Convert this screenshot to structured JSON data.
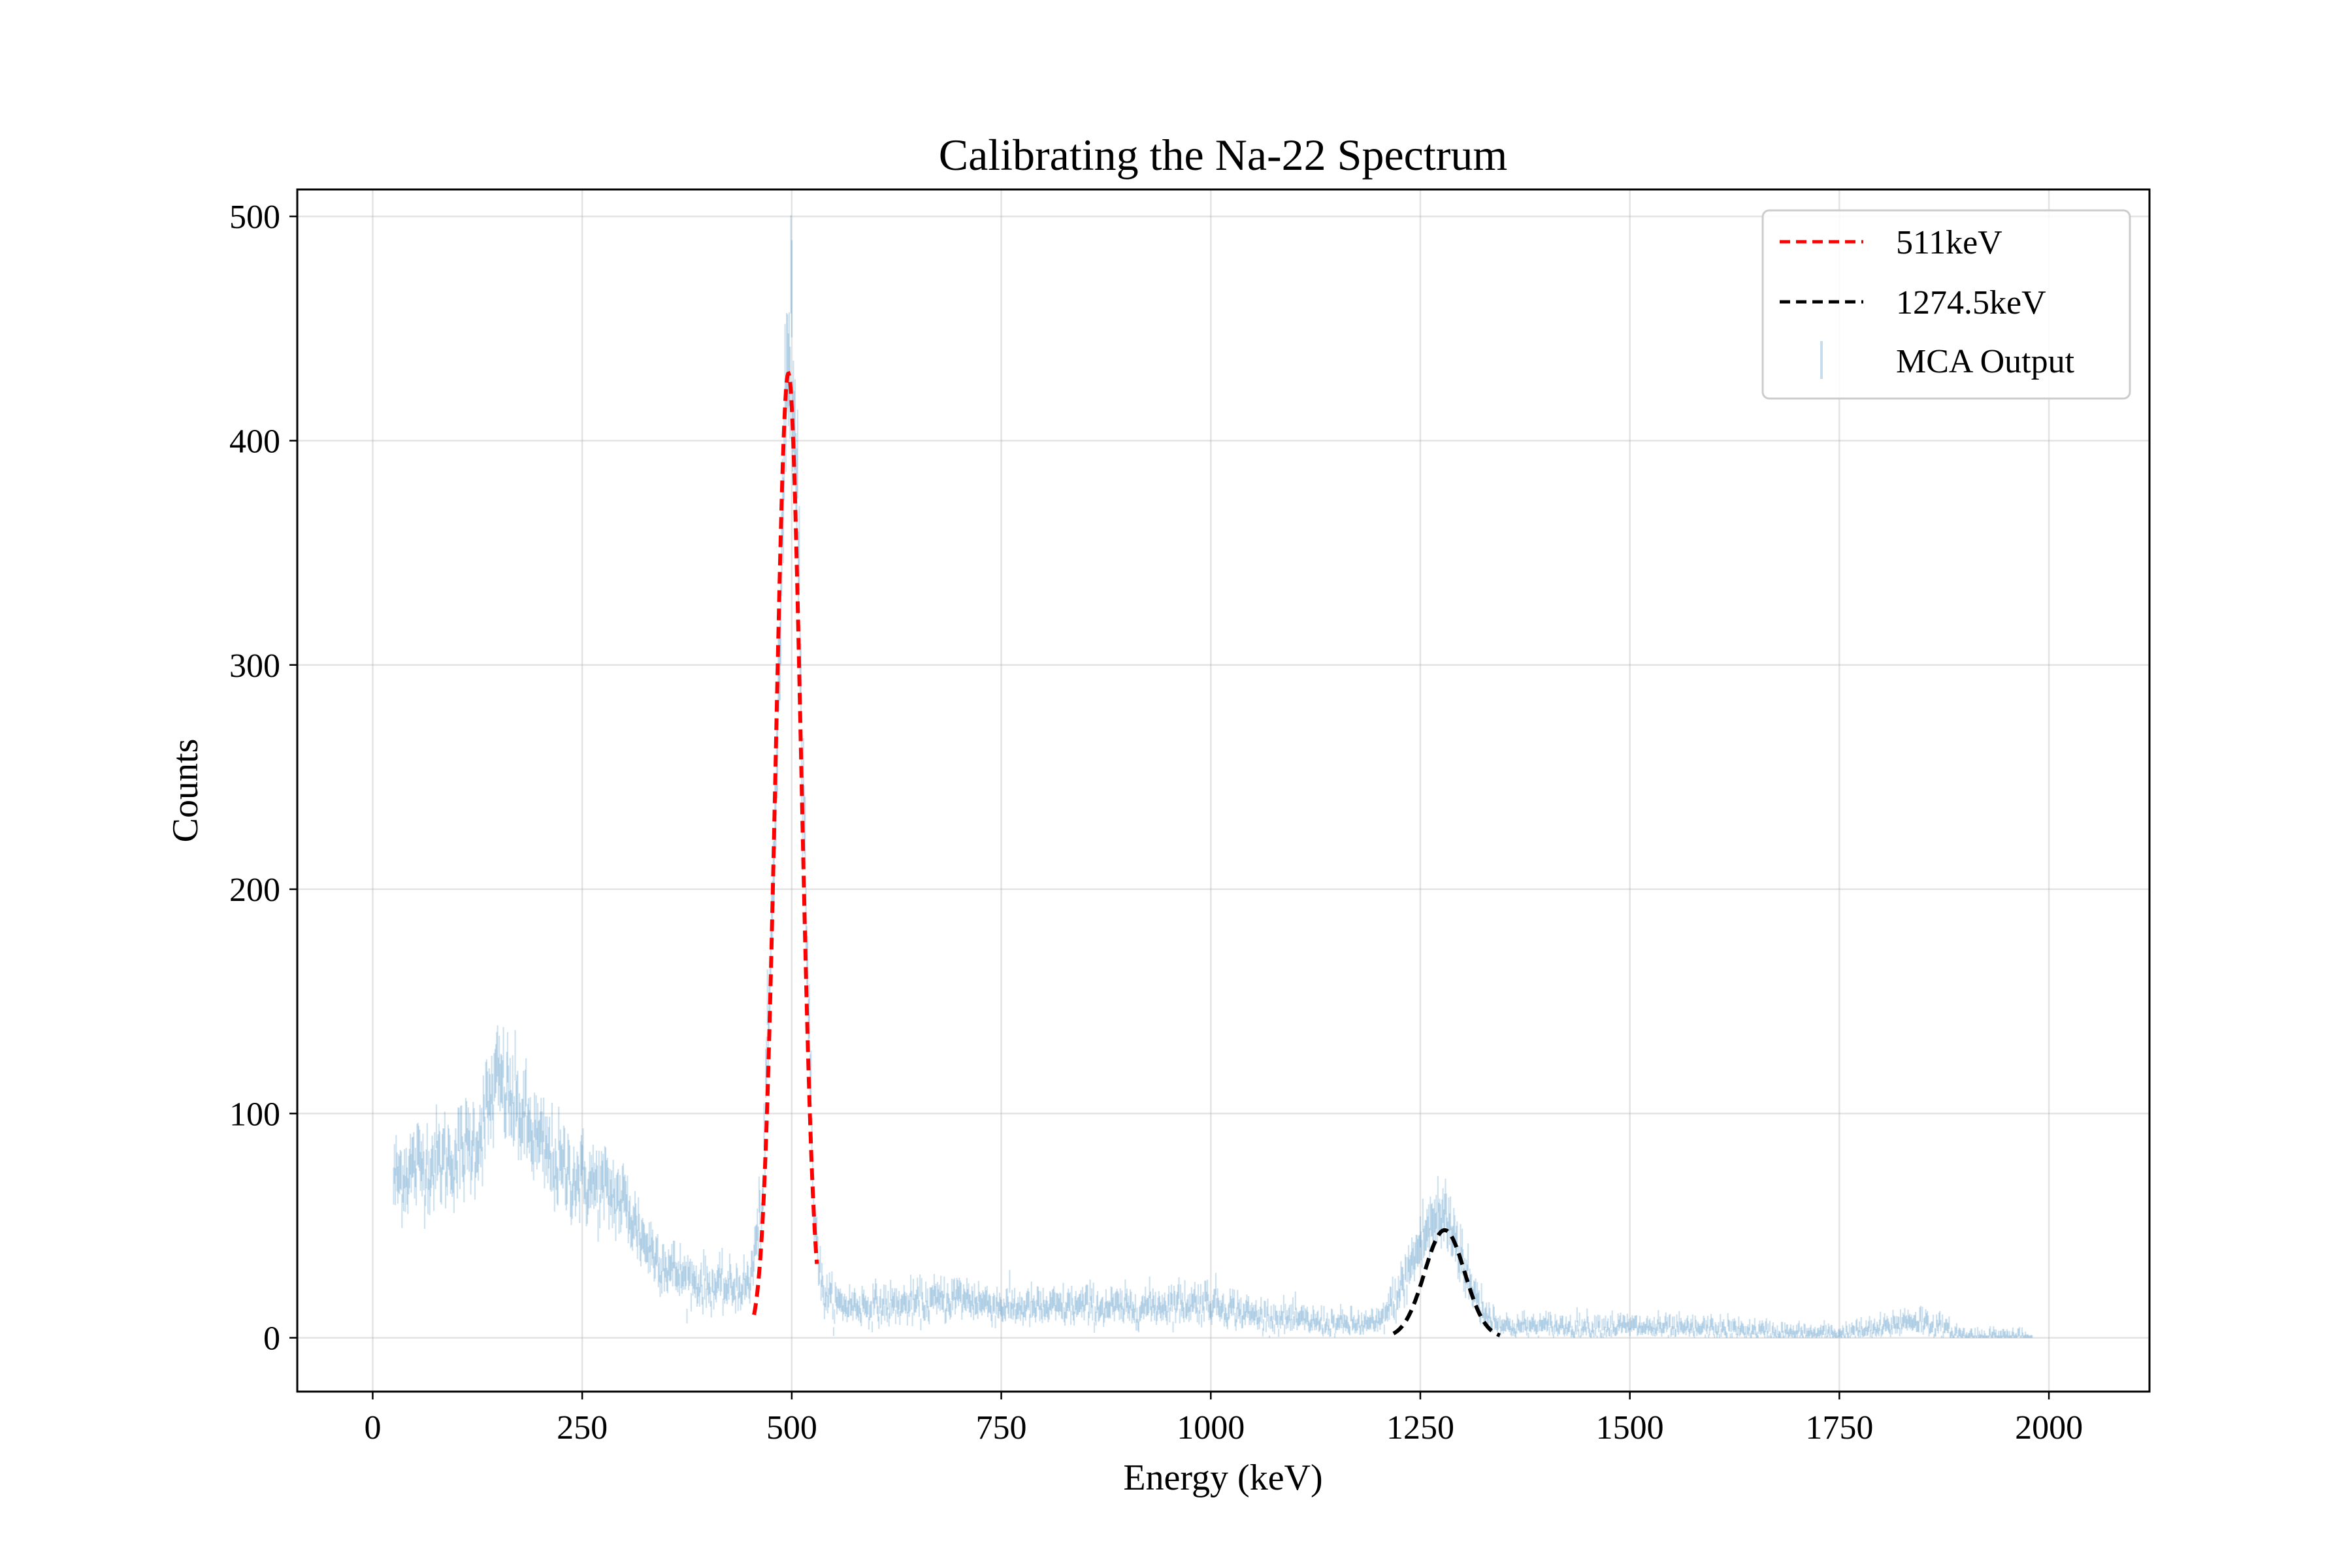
{
  "chart_data": {
    "type": "line",
    "title": "Calibrating the Na-22 Spectrum",
    "xlabel": "Energy (keV)",
    "ylabel": "Counts",
    "xlim": [
      -90,
      2120
    ],
    "ylim": [
      -24,
      512
    ],
    "xticks": [
      0,
      250,
      500,
      750,
      1000,
      1250,
      1500,
      1750,
      2000
    ],
    "yticks": [
      0,
      100,
      200,
      300,
      400,
      500
    ],
    "grid": true,
    "legend_position": "top-right",
    "series": [
      {
        "name": "511keV",
        "style": "dashed",
        "color": "#ff0000",
        "fit": "gaussian",
        "amplitude": 430,
        "center": 496,
        "sigma": 15,
        "x_range": [
          455,
          530
        ]
      },
      {
        "name": "1274.5keV",
        "style": "dashed",
        "color": "#000000",
        "fit": "gaussian",
        "amplitude": 48,
        "center": 1279,
        "sigma": 24,
        "x_range": [
          1218,
          1345
        ]
      },
      {
        "name": "MCA Output",
        "style": "errorbar",
        "color": "#1f77b4",
        "x": [
          25,
          50,
          75,
          100,
          125,
          150,
          175,
          200,
          225,
          250,
          275,
          300,
          325,
          350,
          375,
          400,
          425,
          450,
          465,
          480,
          490,
          497,
          505,
          515,
          525,
          535,
          550,
          600,
          650,
          700,
          750,
          800,
          850,
          900,
          950,
          1000,
          1050,
          1100,
          1150,
          1200,
          1225,
          1250,
          1265,
          1280,
          1295,
          1310,
          1330,
          1350,
          1400,
          1450,
          1500,
          1550,
          1600,
          1650,
          1700,
          1750,
          1800,
          1825,
          1840,
          1860,
          1880,
          1900,
          1950,
          1980
        ],
        "y": [
          70,
          76,
          78,
          80,
          88,
          115,
          100,
          85,
          75,
          70,
          66,
          60,
          42,
          32,
          26,
          23,
          22,
          24,
          60,
          220,
          380,
          450,
          410,
          230,
          70,
          22,
          15,
          14,
          15,
          18,
          14,
          13,
          14,
          13,
          15,
          16,
          10,
          8,
          6,
          6,
          20,
          42,
          52,
          54,
          42,
          22,
          10,
          5,
          5,
          5,
          5,
          4,
          4,
          3,
          2,
          2,
          4,
          7,
          8,
          6,
          3,
          1,
          1,
          0
        ]
      }
    ]
  }
}
